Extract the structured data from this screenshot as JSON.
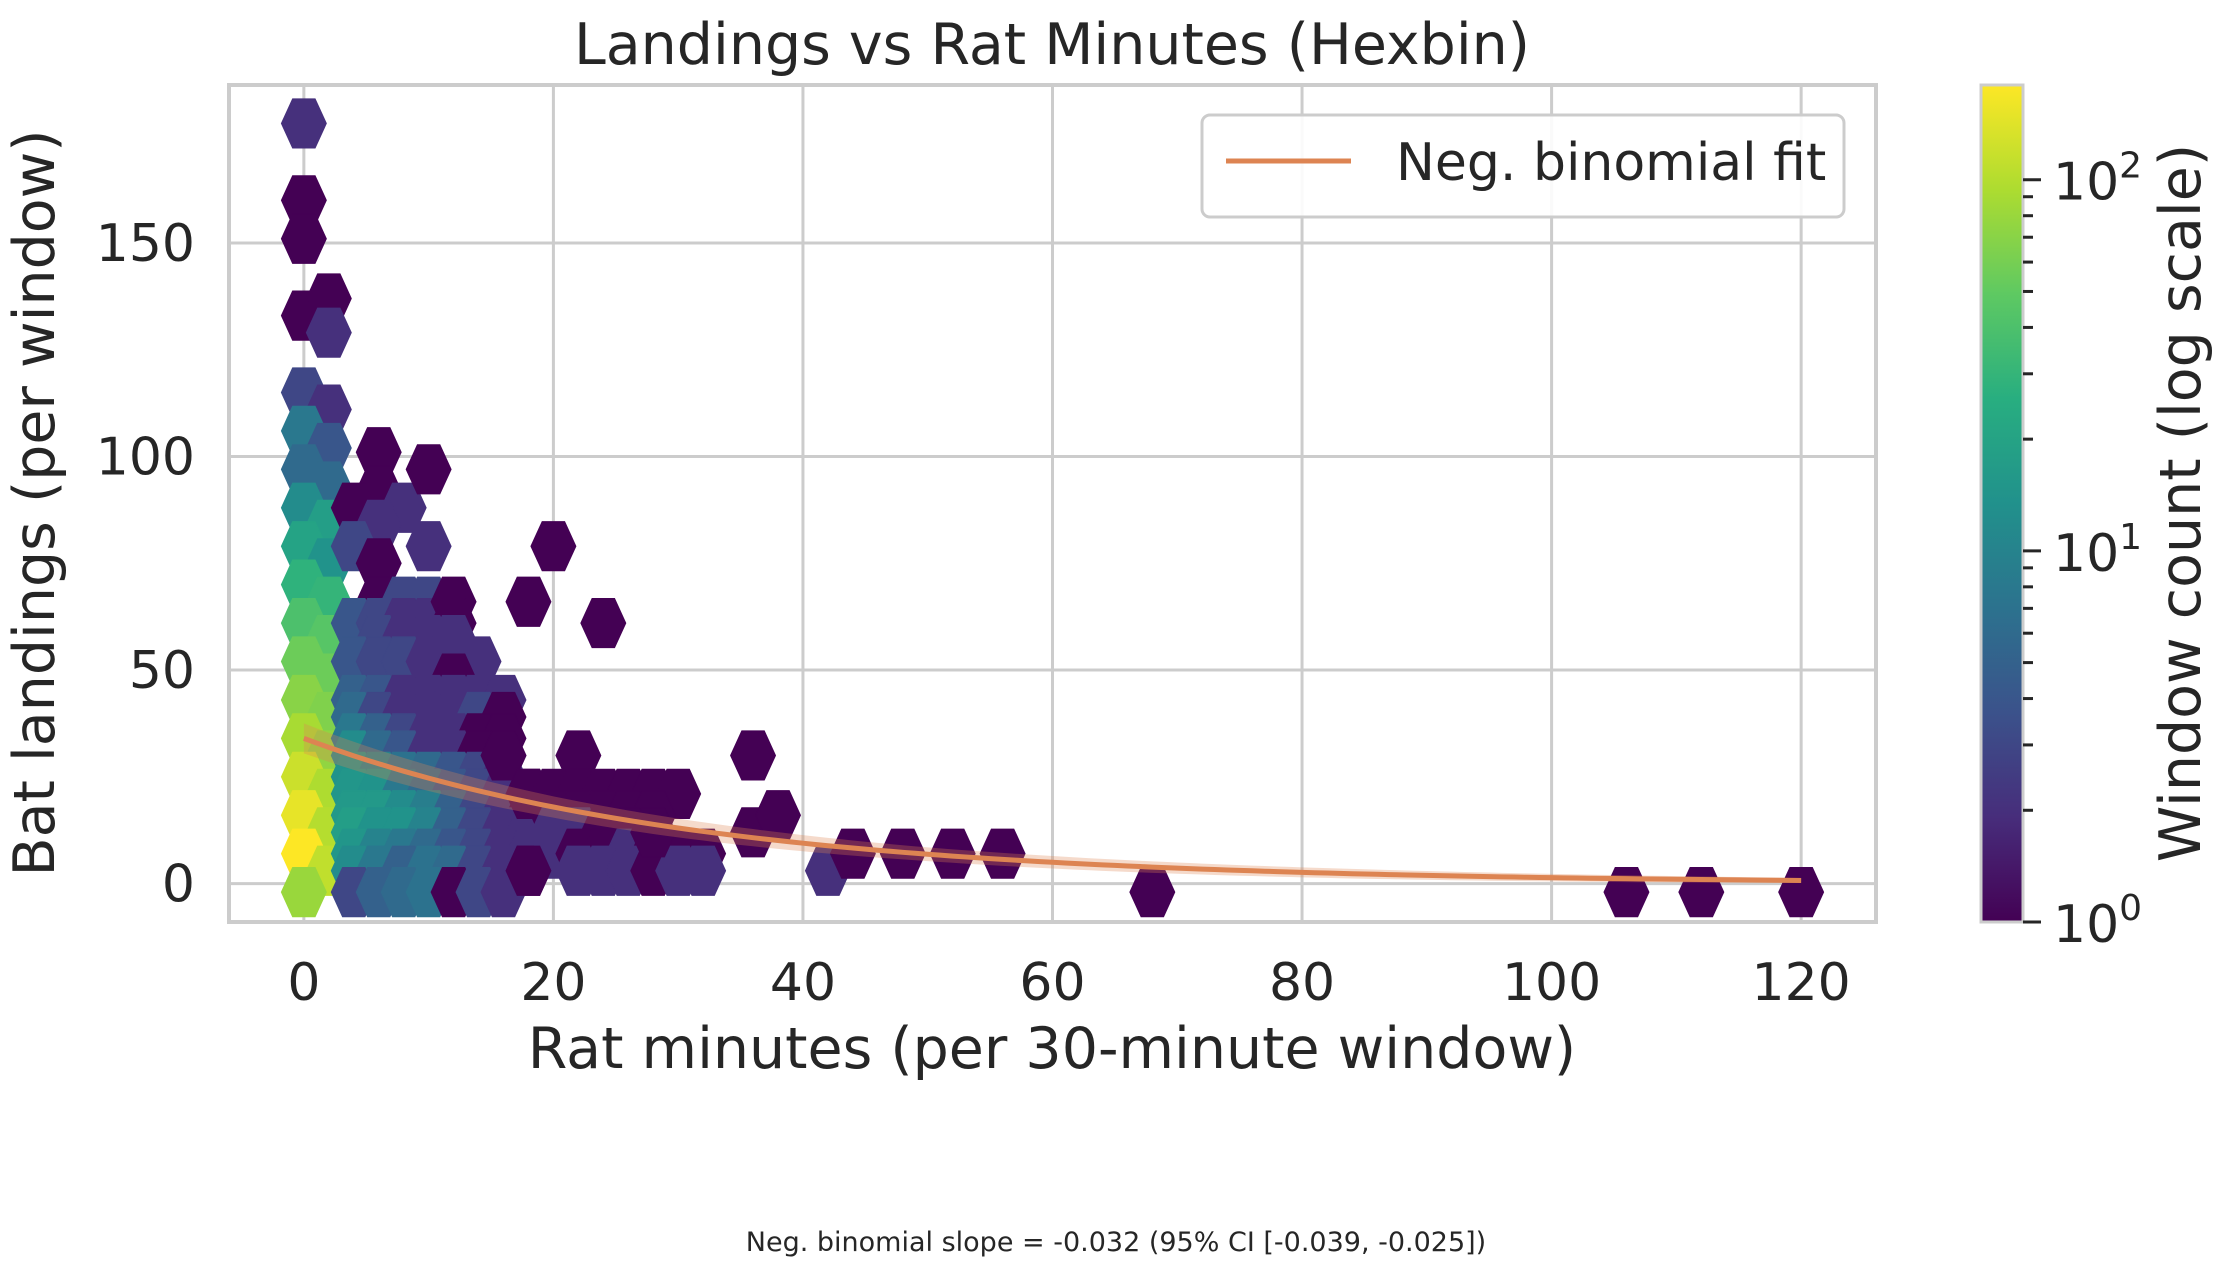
{
  "chart_data": {
    "type": "hexbin",
    "title": "Landings vs Rat Minutes (Hexbin)",
    "xlabel": "Rat minutes (per 30-minute window)",
    "ylabel": "Bat landings (per window)",
    "xlim": [
      -6,
      126
    ],
    "ylim": [
      -9,
      187
    ],
    "xticks": [
      0,
      20,
      40,
      60,
      80,
      100,
      120
    ],
    "yticks": [
      0,
      50,
      100,
      150
    ],
    "grid": true,
    "colormap": "viridis",
    "colorbar": {
      "label": "Window count (log scale)",
      "scale": "log",
      "range": [
        1,
        180
      ],
      "major_ticks": [
        {
          "value": 1,
          "base": "10",
          "exp": "0"
        },
        {
          "value": 10,
          "base": "10",
          "exp": "1"
        },
        {
          "value": 100,
          "base": "10",
          "exp": "2"
        }
      ]
    },
    "legend": {
      "position": "top-right",
      "entries": [
        {
          "label": "Neg. binomial fit",
          "color": "#dd8452"
        }
      ]
    },
    "fit": {
      "name": "Neg. binomial fit",
      "color": "#dd8452",
      "model": "exp",
      "intercept_value": 34,
      "slope": -0.032,
      "x_range": [
        0,
        120
      ],
      "ci_band_halfwidth": [
        [
          0,
          3.5
        ],
        [
          20,
          2.5
        ],
        [
          50,
          1.6
        ],
        [
          120,
          0.6
        ]
      ]
    },
    "hex_grid": {
      "x_step": 2.0,
      "y_step": 9.0
    },
    "bins": [
      [
        0,
        178,
        2
      ],
      [
        0,
        160,
        1
      ],
      [
        0,
        151,
        1
      ],
      [
        0,
        133,
        1
      ],
      [
        2,
        137,
        1
      ],
      [
        2,
        129,
        2
      ],
      [
        0,
        115,
        3
      ],
      [
        2,
        111,
        2
      ],
      [
        0,
        106,
        8
      ],
      [
        2,
        102,
        4
      ],
      [
        0,
        97,
        6
      ],
      [
        2,
        93,
        6
      ],
      [
        0,
        88,
        12
      ],
      [
        2,
        84,
        18
      ],
      [
        0,
        79,
        20
      ],
      [
        2,
        75,
        14
      ],
      [
        0,
        70,
        28
      ],
      [
        2,
        66,
        30
      ],
      [
        0,
        61,
        40
      ],
      [
        2,
        57,
        45
      ],
      [
        0,
        52,
        55
      ],
      [
        2,
        48,
        55
      ],
      [
        0,
        43,
        70
      ],
      [
        2,
        39,
        65
      ],
      [
        0,
        34,
        90
      ],
      [
        2,
        30,
        75
      ],
      [
        0,
        25,
        120
      ],
      [
        2,
        21,
        95
      ],
      [
        0,
        16,
        150
      ],
      [
        2,
        12,
        100
      ],
      [
        0,
        7,
        180
      ],
      [
        2,
        3,
        110
      ],
      [
        0,
        -2,
        80
      ],
      [
        6,
        101,
        1
      ],
      [
        6,
        92,
        1
      ],
      [
        4,
        88,
        1
      ],
      [
        8,
        88,
        2
      ],
      [
        6,
        84,
        2
      ],
      [
        4,
        79,
        3
      ],
      [
        6,
        75,
        1
      ],
      [
        10,
        97,
        1
      ],
      [
        10,
        79,
        2
      ],
      [
        6,
        66,
        1
      ],
      [
        8,
        66,
        3
      ],
      [
        10,
        66,
        3
      ],
      [
        4,
        61,
        4
      ],
      [
        6,
        61,
        3
      ],
      [
        8,
        61,
        2
      ],
      [
        10,
        61,
        2
      ],
      [
        12,
        66,
        1
      ],
      [
        12,
        61,
        1
      ],
      [
        6,
        57,
        3
      ],
      [
        8,
        57,
        2
      ],
      [
        10,
        57,
        2
      ],
      [
        12,
        57,
        2
      ],
      [
        4,
        52,
        4
      ],
      [
        6,
        52,
        3
      ],
      [
        8,
        52,
        3
      ],
      [
        10,
        52,
        2
      ],
      [
        12,
        52,
        2
      ],
      [
        14,
        52,
        2
      ],
      [
        12,
        48,
        1
      ],
      [
        4,
        43,
        5
      ],
      [
        6,
        43,
        4
      ],
      [
        8,
        43,
        2
      ],
      [
        10,
        43,
        2
      ],
      [
        12,
        43,
        2
      ],
      [
        14,
        43,
        2
      ],
      [
        16,
        43,
        2
      ],
      [
        4,
        39,
        6
      ],
      [
        6,
        39,
        3
      ],
      [
        8,
        39,
        2
      ],
      [
        10,
        39,
        2
      ],
      [
        12,
        39,
        2
      ],
      [
        14,
        39,
        3
      ],
      [
        16,
        39,
        1
      ],
      [
        4,
        34,
        8
      ],
      [
        6,
        34,
        5
      ],
      [
        8,
        34,
        3
      ],
      [
        10,
        34,
        2
      ],
      [
        12,
        34,
        2
      ],
      [
        14,
        34,
        1
      ],
      [
        16,
        34,
        1
      ],
      [
        4,
        30,
        12
      ],
      [
        6,
        30,
        6
      ],
      [
        8,
        30,
        4
      ],
      [
        10,
        30,
        2
      ],
      [
        12,
        30,
        2
      ],
      [
        14,
        30,
        1
      ],
      [
        16,
        30,
        1
      ],
      [
        4,
        25,
        14
      ],
      [
        6,
        25,
        10
      ],
      [
        8,
        25,
        7
      ],
      [
        10,
        25,
        6
      ],
      [
        12,
        25,
        4
      ],
      [
        14,
        25,
        3
      ],
      [
        16,
        25,
        2
      ],
      [
        4,
        21,
        15
      ],
      [
        6,
        21,
        14
      ],
      [
        8,
        21,
        8
      ],
      [
        10,
        21,
        6
      ],
      [
        12,
        21,
        4
      ],
      [
        14,
        21,
        3
      ],
      [
        16,
        21,
        2
      ],
      [
        18,
        21,
        1
      ],
      [
        4,
        16,
        16
      ],
      [
        6,
        16,
        16
      ],
      [
        8,
        16,
        12
      ],
      [
        10,
        16,
        9
      ],
      [
        12,
        16,
        5
      ],
      [
        14,
        16,
        3
      ],
      [
        16,
        16,
        2
      ],
      [
        18,
        16,
        1
      ],
      [
        4,
        12,
        18
      ],
      [
        6,
        12,
        14
      ],
      [
        8,
        12,
        14
      ],
      [
        10,
        12,
        10
      ],
      [
        12,
        12,
        5
      ],
      [
        14,
        12,
        3
      ],
      [
        16,
        12,
        2
      ],
      [
        18,
        12,
        2
      ],
      [
        4,
        7,
        15
      ],
      [
        6,
        7,
        10
      ],
      [
        8,
        7,
        8
      ],
      [
        10,
        7,
        6
      ],
      [
        12,
        7,
        4
      ],
      [
        14,
        7,
        3
      ],
      [
        16,
        7,
        2
      ],
      [
        18,
        7,
        2
      ],
      [
        4,
        3,
        12
      ],
      [
        6,
        3,
        8
      ],
      [
        8,
        3,
        5
      ],
      [
        10,
        3,
        7
      ],
      [
        12,
        3,
        6
      ],
      [
        14,
        3,
        3
      ],
      [
        16,
        3,
        2
      ],
      [
        18,
        3,
        1
      ],
      [
        4,
        -2,
        3
      ],
      [
        6,
        -2,
        5
      ],
      [
        8,
        -2,
        6
      ],
      [
        10,
        -2,
        7
      ],
      [
        12,
        -2,
        1
      ],
      [
        14,
        -2,
        3
      ],
      [
        16,
        -2,
        2
      ],
      [
        18,
        66,
        1
      ],
      [
        20,
        79,
        1
      ],
      [
        24,
        61,
        1
      ],
      [
        16,
        30,
        1
      ],
      [
        22,
        30,
        1
      ],
      [
        36,
        30,
        1
      ],
      [
        18,
        21,
        1
      ],
      [
        20,
        21,
        1
      ],
      [
        22,
        21,
        1
      ],
      [
        24,
        21,
        1
      ],
      [
        26,
        21,
        1
      ],
      [
        28,
        21,
        1
      ],
      [
        30,
        21,
        1
      ],
      [
        20,
        16,
        1
      ],
      [
        22,
        16,
        1
      ],
      [
        24,
        16,
        1
      ],
      [
        26,
        16,
        1
      ],
      [
        28,
        16,
        1
      ],
      [
        20,
        12,
        2
      ],
      [
        22,
        12,
        2
      ],
      [
        24,
        12,
        1
      ],
      [
        26,
        12,
        1
      ],
      [
        28,
        12,
        1
      ],
      [
        36,
        12,
        1
      ],
      [
        38,
        16,
        1
      ],
      [
        20,
        7,
        2
      ],
      [
        22,
        7,
        1
      ],
      [
        24,
        7,
        1
      ],
      [
        26,
        7,
        2
      ],
      [
        28,
        7,
        1
      ],
      [
        30,
        7,
        1
      ],
      [
        32,
        7,
        1
      ],
      [
        22,
        3,
        2
      ],
      [
        24,
        3,
        2
      ],
      [
        26,
        3,
        2
      ],
      [
        28,
        3,
        1
      ],
      [
        30,
        3,
        2
      ],
      [
        32,
        3,
        2
      ],
      [
        18,
        3,
        1
      ],
      [
        28,
        12,
        1
      ],
      [
        42,
        3,
        2
      ],
      [
        44,
        7,
        1
      ],
      [
        48,
        7,
        1
      ],
      [
        52,
        7,
        1
      ],
      [
        56,
        7,
        1
      ],
      [
        68,
        -2,
        1
      ],
      [
        106,
        -2,
        1
      ],
      [
        112,
        -2,
        1
      ],
      [
        120,
        -2,
        1
      ]
    ],
    "annotation": "Neg. binomial slope = -0.032 (95% CI [-0.039, -0.025])"
  }
}
